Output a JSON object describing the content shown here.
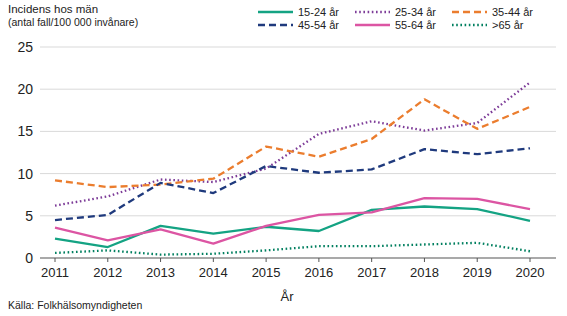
{
  "chart_data": {
    "type": "line",
    "y_label": [
      "Incidens hos män",
      "(antal fall/100 000 invånare)"
    ],
    "x_label": "År",
    "source": "Källa: Folkhälsomyndigheten",
    "x": [
      2011,
      2012,
      2013,
      2014,
      2015,
      2016,
      2017,
      2018,
      2019,
      2020
    ],
    "xlim": [
      2011,
      2020
    ],
    "xticks": [
      2011,
      2012,
      2013,
      2014,
      2015,
      2016,
      2017,
      2018,
      2019,
      2020
    ],
    "ylim": [
      0,
      25
    ],
    "yticks": [
      0,
      5,
      10,
      15,
      20,
      25
    ],
    "grid": true,
    "legend": "top",
    "series": [
      {
        "name": "15-24 år",
        "color": "#14a383",
        "line_style": "solid",
        "values": [
          2.3,
          1.3,
          3.8,
          2.9,
          3.7,
          3.2,
          5.7,
          6.1,
          5.8,
          4.4
        ]
      },
      {
        "name": "25-34 år",
        "color": "#7d3c98",
        "line_style": "dotted",
        "values": [
          6.2,
          7.3,
          9.3,
          9.0,
          10.6,
          14.7,
          16.2,
          15.1,
          16.0,
          20.8
        ]
      },
      {
        "name": "35-44 år",
        "color": "#eb7d2e",
        "line_style": "dashed",
        "values": [
          9.2,
          8.4,
          8.7,
          9.4,
          13.2,
          12.0,
          14.1,
          18.8,
          15.3,
          17.9
        ]
      },
      {
        "name": "45-54 år",
        "color": "#1f3a7d",
        "line_style": "dashed",
        "values": [
          4.5,
          5.1,
          8.9,
          7.7,
          10.9,
          10.1,
          10.5,
          12.9,
          12.3,
          13.0
        ]
      },
      {
        "name": "55-64 år",
        "color": "#dc55a3",
        "line_style": "solid",
        "values": [
          3.6,
          2.1,
          3.4,
          1.7,
          3.8,
          5.1,
          5.4,
          7.1,
          7.0,
          5.8
        ]
      },
      {
        "name": ">65 år",
        "color": "#007f5f",
        "line_style": "dotted",
        "values": [
          0.6,
          0.9,
          0.4,
          0.5,
          0.9,
          1.4,
          1.4,
          1.6,
          1.8,
          0.8
        ]
      }
    ]
  }
}
